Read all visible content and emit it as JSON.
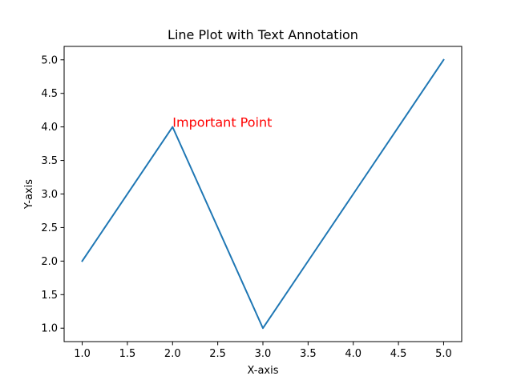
{
  "chart_data": {
    "type": "line",
    "title": "Line Plot with Text Annotation",
    "xlabel": "X-axis",
    "ylabel": "Y-axis",
    "xlim": [
      0.8,
      5.2
    ],
    "ylim": [
      0.8,
      5.2
    ],
    "x_ticks": [
      1.0,
      1.5,
      2.0,
      2.5,
      3.0,
      3.5,
      4.0,
      4.5,
      5.0
    ],
    "x_tick_labels": [
      "1.0",
      "1.5",
      "2.0",
      "2.5",
      "3.0",
      "3.5",
      "4.0",
      "4.5",
      "5.0"
    ],
    "y_ticks": [
      1.0,
      1.5,
      2.0,
      2.5,
      3.0,
      3.5,
      4.0,
      4.5,
      5.0
    ],
    "y_tick_labels": [
      "1.0",
      "1.5",
      "2.0",
      "2.5",
      "3.0",
      "3.5",
      "4.0",
      "4.5",
      "5.0"
    ],
    "grid": false,
    "legend": "none",
    "series": [
      {
        "x": [
          1,
          2,
          3,
          4,
          5
        ],
        "y": [
          2,
          4,
          1,
          3,
          5
        ],
        "color": "#1f77b4"
      }
    ],
    "annotations": [
      {
        "text": "Important Point",
        "x": 2,
        "y": 4,
        "color": "#ff0000"
      }
    ]
  }
}
